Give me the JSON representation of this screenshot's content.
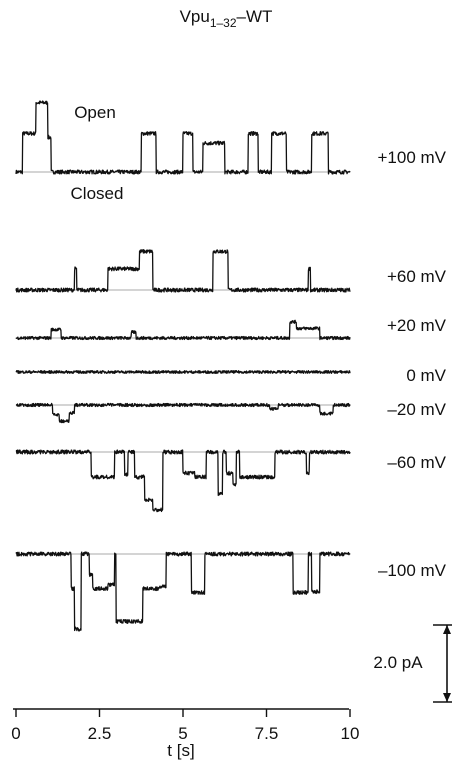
{
  "chart_data": {
    "type": "line",
    "title_main": "Vpu",
    "title_sub": "1–32",
    "title_tail": "–WT",
    "xlabel": "t [s]",
    "xlim": [
      0,
      10
    ],
    "x_ticks": [
      "0",
      "2.5",
      "5",
      "7.5",
      "10"
    ],
    "scale_bar_label": "2.0 pA",
    "scale_bar_pA": 2.0,
    "state_labels": {
      "open": "Open",
      "closed": "Closed"
    },
    "trace_color": "#111111",
    "baseline_color": "#aaaaaa",
    "series": [
      {
        "name": "+100 mV",
        "polarity": 1,
        "noise": 0.05,
        "events": [
          [
            0.6,
            0.95,
            1.8
          ],
          [
            0.2,
            0.6,
            1.0
          ],
          [
            0.95,
            1.05,
            0.9
          ],
          [
            3.75,
            4.2,
            1.0
          ],
          [
            5.0,
            5.3,
            1.0
          ],
          [
            5.6,
            6.25,
            0.75
          ],
          [
            6.95,
            7.25,
            1.0
          ],
          [
            7.65,
            8.1,
            1.0
          ],
          [
            8.85,
            9.35,
            1.0
          ]
        ]
      },
      {
        "name": "+60 mV",
        "polarity": 1,
        "noise": 0.05,
        "events": [
          [
            1.75,
            1.82,
            0.55
          ],
          [
            2.75,
            3.7,
            0.55
          ],
          [
            3.7,
            4.1,
            1.0
          ],
          [
            5.9,
            6.35,
            1.0
          ],
          [
            8.75,
            8.82,
            0.55
          ]
        ]
      },
      {
        "name": "+20 mV",
        "polarity": 1,
        "noise": 0.04,
        "events": [
          [
            1.05,
            1.35,
            0.22
          ],
          [
            3.45,
            3.6,
            0.15
          ],
          [
            8.2,
            8.4,
            0.42
          ],
          [
            8.4,
            9.1,
            0.25
          ]
        ]
      },
      {
        "name": "0 mV",
        "polarity": 1,
        "noise": 0.035,
        "events": []
      },
      {
        "name": "–20 mV",
        "polarity": -1,
        "noise": 0.04,
        "events": [
          [
            1.1,
            1.3,
            0.25
          ],
          [
            1.3,
            1.6,
            0.42
          ],
          [
            1.6,
            1.75,
            0.2
          ],
          [
            7.6,
            7.85,
            0.1
          ],
          [
            9.1,
            9.5,
            0.22
          ]
        ]
      },
      {
        "name": "–60 mV",
        "polarity": -1,
        "noise": 0.05,
        "events": [
          [
            2.25,
            2.95,
            0.65
          ],
          [
            3.25,
            3.35,
            0.6
          ],
          [
            3.55,
            3.85,
            0.65
          ],
          [
            3.85,
            4.1,
            1.25
          ],
          [
            4.1,
            4.4,
            1.5
          ],
          [
            5.0,
            5.35,
            0.55
          ],
          [
            5.35,
            5.7,
            0.65
          ],
          [
            6.05,
            6.18,
            1.1
          ],
          [
            6.3,
            6.5,
            0.55
          ],
          [
            6.5,
            6.6,
            0.85
          ],
          [
            6.7,
            7.75,
            0.65
          ],
          [
            8.7,
            8.78,
            0.55
          ]
        ]
      },
      {
        "name": "–100 mV",
        "polarity": -1,
        "noise": 0.05,
        "events": [
          [
            1.65,
            1.75,
            0.9
          ],
          [
            1.75,
            1.95,
            1.95
          ],
          [
            2.2,
            2.3,
            0.55
          ],
          [
            2.3,
            2.75,
            0.9
          ],
          [
            2.75,
            2.95,
            0.8
          ],
          [
            3.0,
            3.8,
            1.75
          ],
          [
            3.8,
            4.3,
            0.9
          ],
          [
            4.3,
            4.5,
            0.85
          ],
          [
            5.25,
            5.65,
            1.0
          ],
          [
            8.3,
            8.75,
            1.0
          ],
          [
            8.85,
            9.1,
            0.98
          ]
        ]
      }
    ]
  }
}
